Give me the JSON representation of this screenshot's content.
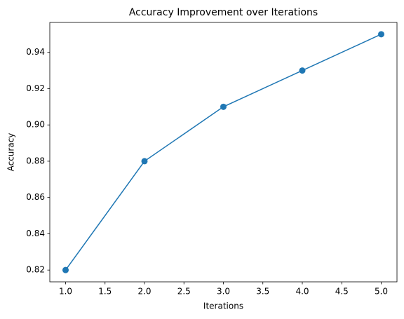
{
  "chart_data": {
    "type": "line",
    "title": "Accuracy Improvement over Iterations",
    "x_label": "Iterations",
    "y_label": "Accuracy",
    "x": [
      1,
      2,
      3,
      4,
      5
    ],
    "values": [
      0.82,
      0.88,
      0.91,
      0.93,
      0.95
    ],
    "color": "#1f77b4",
    "xlim": [
      0.8,
      5.2
    ],
    "xticks": [
      {
        "value": 1,
        "label": "1.0"
      },
      1.5,
      {
        "value": 2,
        "label": "2.0"
      },
      2.5,
      {
        "value": 3,
        "label": "3.0"
      },
      3.5,
      {
        "value": 4,
        "label": "4.0"
      },
      4.5,
      {
        "value": 5,
        "label": "5.0"
      }
    ],
    "ylim": [
      0.8135,
      0.9565
    ],
    "yticks": [
      0.82,
      0.84,
      0.86,
      0.88,
      {
        "value": 0.9,
        "label": "0.90"
      },
      0.92,
      0.94
    ],
    "grid": false,
    "markers": true
  }
}
